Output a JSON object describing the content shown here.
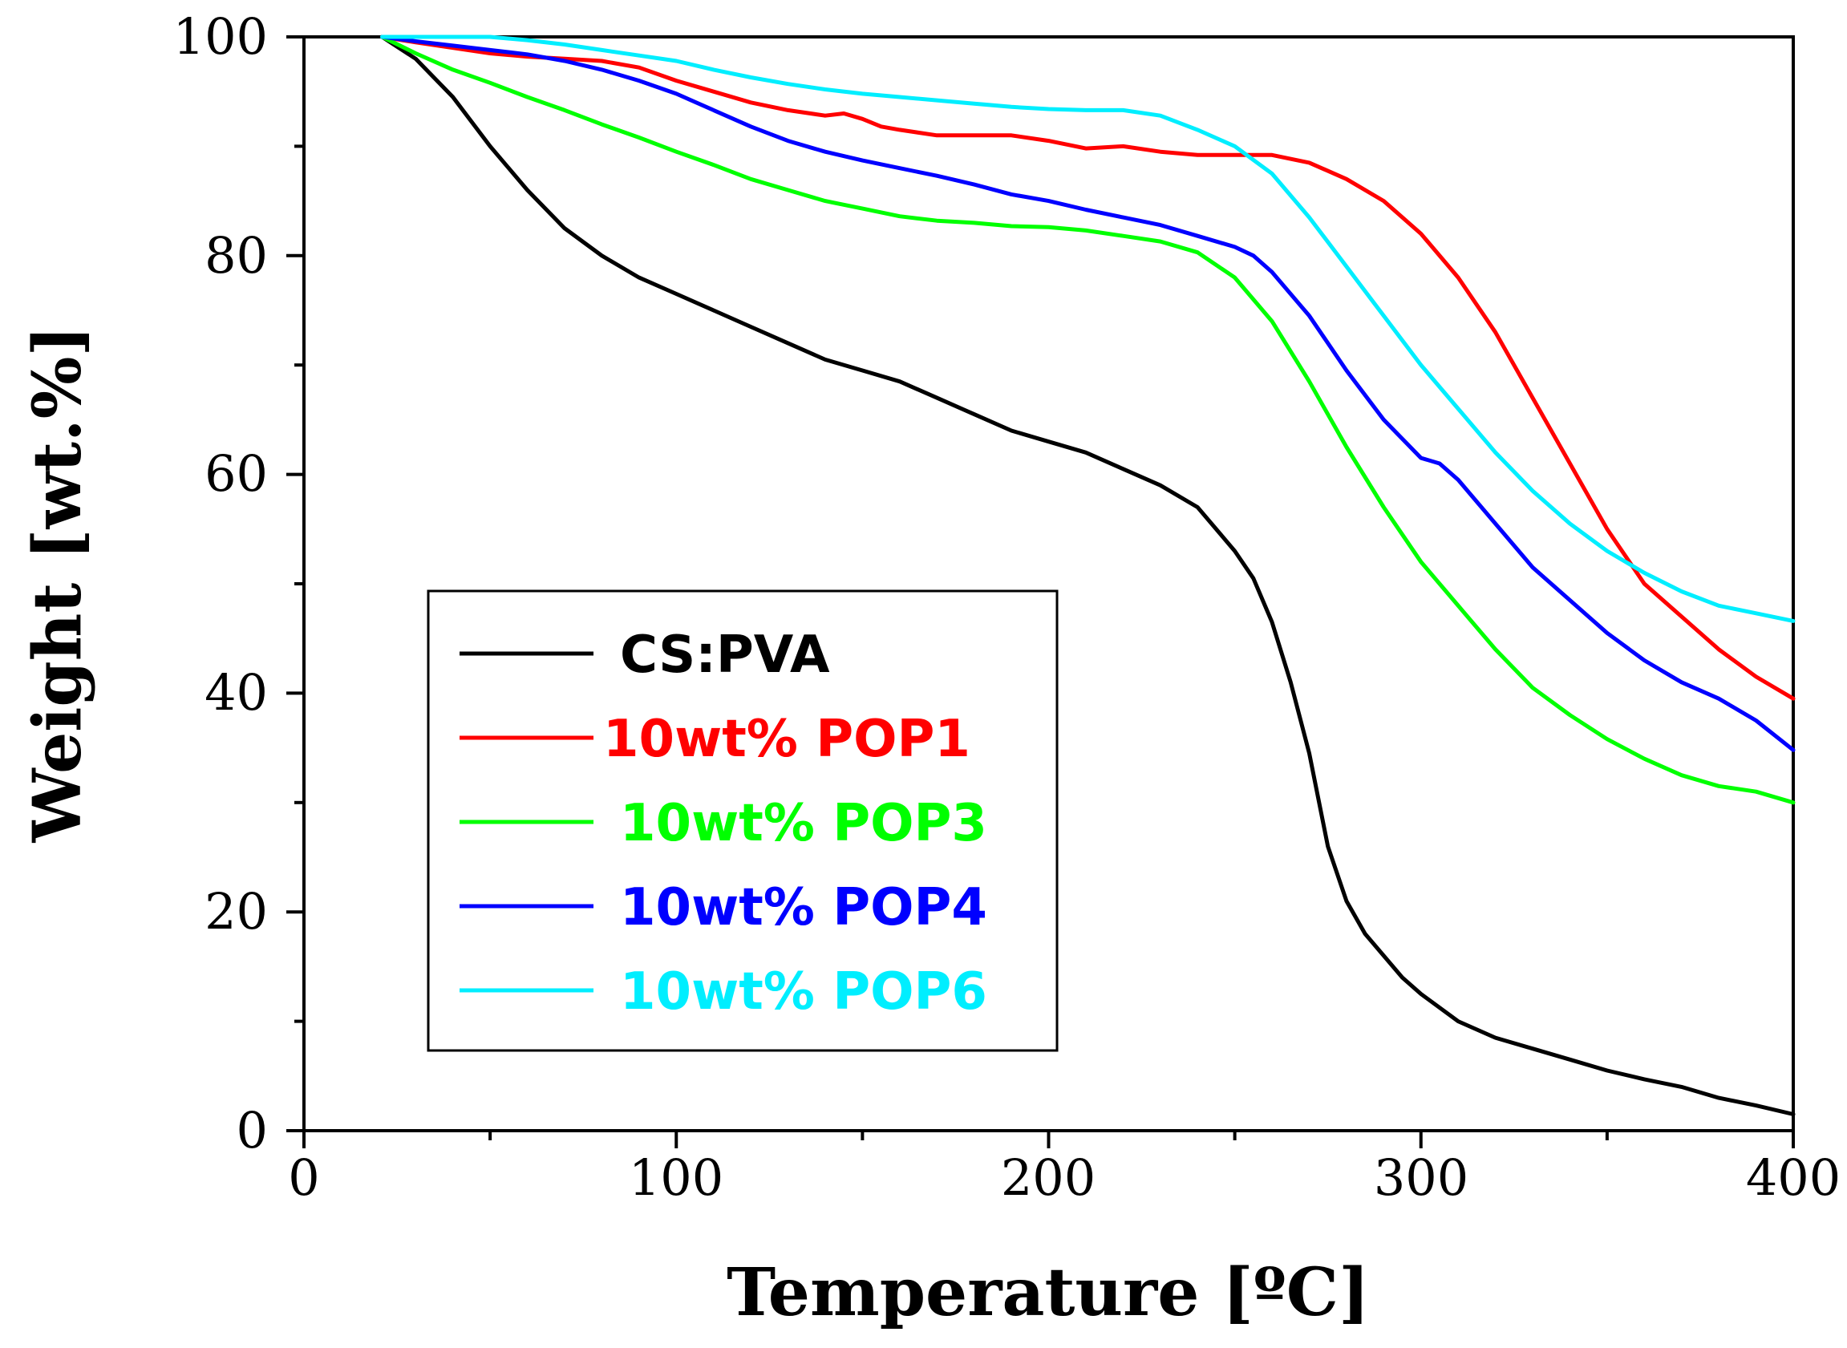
{
  "chart_data": {
    "type": "line",
    "title": "",
    "xlabel": "Temperature [ºC]",
    "ylabel": "Weight [wt.%]",
    "xlim": [
      0,
      400
    ],
    "ylim": [
      0,
      100
    ],
    "x_ticks": [
      0,
      100,
      200,
      300,
      400
    ],
    "y_ticks": [
      0,
      20,
      40,
      60,
      80,
      100
    ],
    "x_tick_labels": [
      "0",
      "100",
      "200",
      "300",
      "400"
    ],
    "y_tick_labels": [
      "0",
      "20",
      "40",
      "60",
      "80",
      "100"
    ],
    "grid": false,
    "legend_position": "center-left",
    "series": [
      {
        "name": "CS:PVA",
        "color": "#000000",
        "x": [
          21,
          30,
          40,
          50,
          60,
          70,
          80,
          90,
          100,
          110,
          120,
          130,
          140,
          150,
          160,
          170,
          180,
          190,
          200,
          210,
          220,
          230,
          240,
          250,
          255,
          260,
          265,
          270,
          275,
          280,
          285,
          290,
          295,
          300,
          310,
          320,
          330,
          340,
          350,
          360,
          370,
          380,
          390,
          400
        ],
        "y": [
          100,
          98,
          94.5,
          90,
          86,
          82.5,
          80,
          78,
          76.5,
          75,
          73.5,
          72,
          70.5,
          69.5,
          68.5,
          67,
          65.5,
          64,
          63,
          62,
          60.5,
          59,
          57,
          53,
          50.5,
          46.5,
          41,
          34.5,
          26,
          21,
          18,
          16,
          14,
          12.5,
          10,
          8.5,
          7.5,
          6.5,
          5.5,
          4.7,
          4,
          3,
          2.3,
          1.5
        ]
      },
      {
        "name": "10wt% POP1",
        "color": "#ff0000",
        "x": [
          21,
          30,
          40,
          50,
          60,
          70,
          80,
          90,
          100,
          110,
          120,
          130,
          140,
          145,
          150,
          155,
          160,
          170,
          180,
          190,
          200,
          210,
          220,
          230,
          240,
          250,
          260,
          270,
          280,
          290,
          300,
          310,
          320,
          330,
          340,
          350,
          360,
          370,
          380,
          390,
          400
        ],
        "y": [
          100,
          99.5,
          99,
          98.5,
          98.2,
          98,
          97.8,
          97.2,
          96,
          95,
          94,
          93.3,
          92.8,
          93,
          92.5,
          91.8,
          91.5,
          91,
          91,
          91,
          90.5,
          89.8,
          90,
          89.5,
          89.2,
          89.2,
          89.2,
          88.5,
          87,
          85,
          82,
          78,
          73,
          67,
          61,
          55,
          50,
          47,
          44,
          41.5,
          39.5
        ]
      },
      {
        "name": "10wt% POP3",
        "color": "#00ff00",
        "x": [
          21,
          30,
          40,
          50,
          60,
          70,
          80,
          90,
          100,
          110,
          120,
          130,
          140,
          150,
          160,
          170,
          180,
          190,
          200,
          210,
          220,
          230,
          240,
          250,
          260,
          270,
          280,
          290,
          300,
          310,
          320,
          330,
          340,
          350,
          360,
          370,
          380,
          390,
          400
        ],
        "y": [
          100,
          98.5,
          97,
          95.8,
          94.5,
          93.3,
          92,
          90.8,
          89.5,
          88.3,
          87,
          86,
          85,
          84.3,
          83.6,
          83.2,
          83,
          82.7,
          82.6,
          82.3,
          81.8,
          81.3,
          80.3,
          78,
          74,
          68.5,
          62.5,
          57,
          52,
          48,
          44,
          40.5,
          38,
          35.8,
          34,
          32.5,
          31.5,
          31,
          30
        ]
      },
      {
        "name": "10wt% POP4",
        "color": "#0000ff",
        "x": [
          21,
          30,
          40,
          50,
          60,
          70,
          80,
          90,
          100,
          110,
          120,
          130,
          140,
          150,
          160,
          170,
          180,
          190,
          200,
          210,
          220,
          230,
          240,
          250,
          255,
          260,
          270,
          280,
          290,
          300,
          305,
          310,
          320,
          330,
          340,
          350,
          360,
          370,
          380,
          390,
          400
        ],
        "y": [
          100,
          99.6,
          99.2,
          98.8,
          98.4,
          97.8,
          97,
          96,
          94.8,
          93.3,
          91.8,
          90.5,
          89.5,
          88.7,
          88,
          87.3,
          86.5,
          85.6,
          85,
          84.2,
          83.5,
          82.8,
          81.8,
          80.8,
          80,
          78.5,
          74.5,
          69.5,
          65,
          61.5,
          61,
          59.5,
          55.5,
          51.5,
          48.5,
          45.5,
          43,
          41,
          39.5,
          37.5,
          34.8
        ]
      },
      {
        "name": "10wt% POP6",
        "color": "#00eeff",
        "x": [
          21,
          30,
          40,
          50,
          60,
          70,
          80,
          90,
          100,
          110,
          120,
          130,
          140,
          150,
          160,
          170,
          180,
          190,
          200,
          210,
          220,
          230,
          240,
          250,
          260,
          270,
          280,
          290,
          300,
          310,
          320,
          330,
          340,
          350,
          360,
          370,
          380,
          390,
          400
        ],
        "y": [
          100,
          100,
          100,
          100,
          99.7,
          99.3,
          98.8,
          98.3,
          97.8,
          97,
          96.3,
          95.7,
          95.2,
          94.8,
          94.5,
          94.2,
          93.9,
          93.6,
          93.4,
          93.3,
          93.3,
          92.8,
          91.5,
          90,
          87.5,
          83.5,
          79,
          74.5,
          70,
          66,
          62,
          58.5,
          55.5,
          53,
          51,
          49.3,
          48,
          47.3,
          46.6
        ]
      }
    ]
  }
}
